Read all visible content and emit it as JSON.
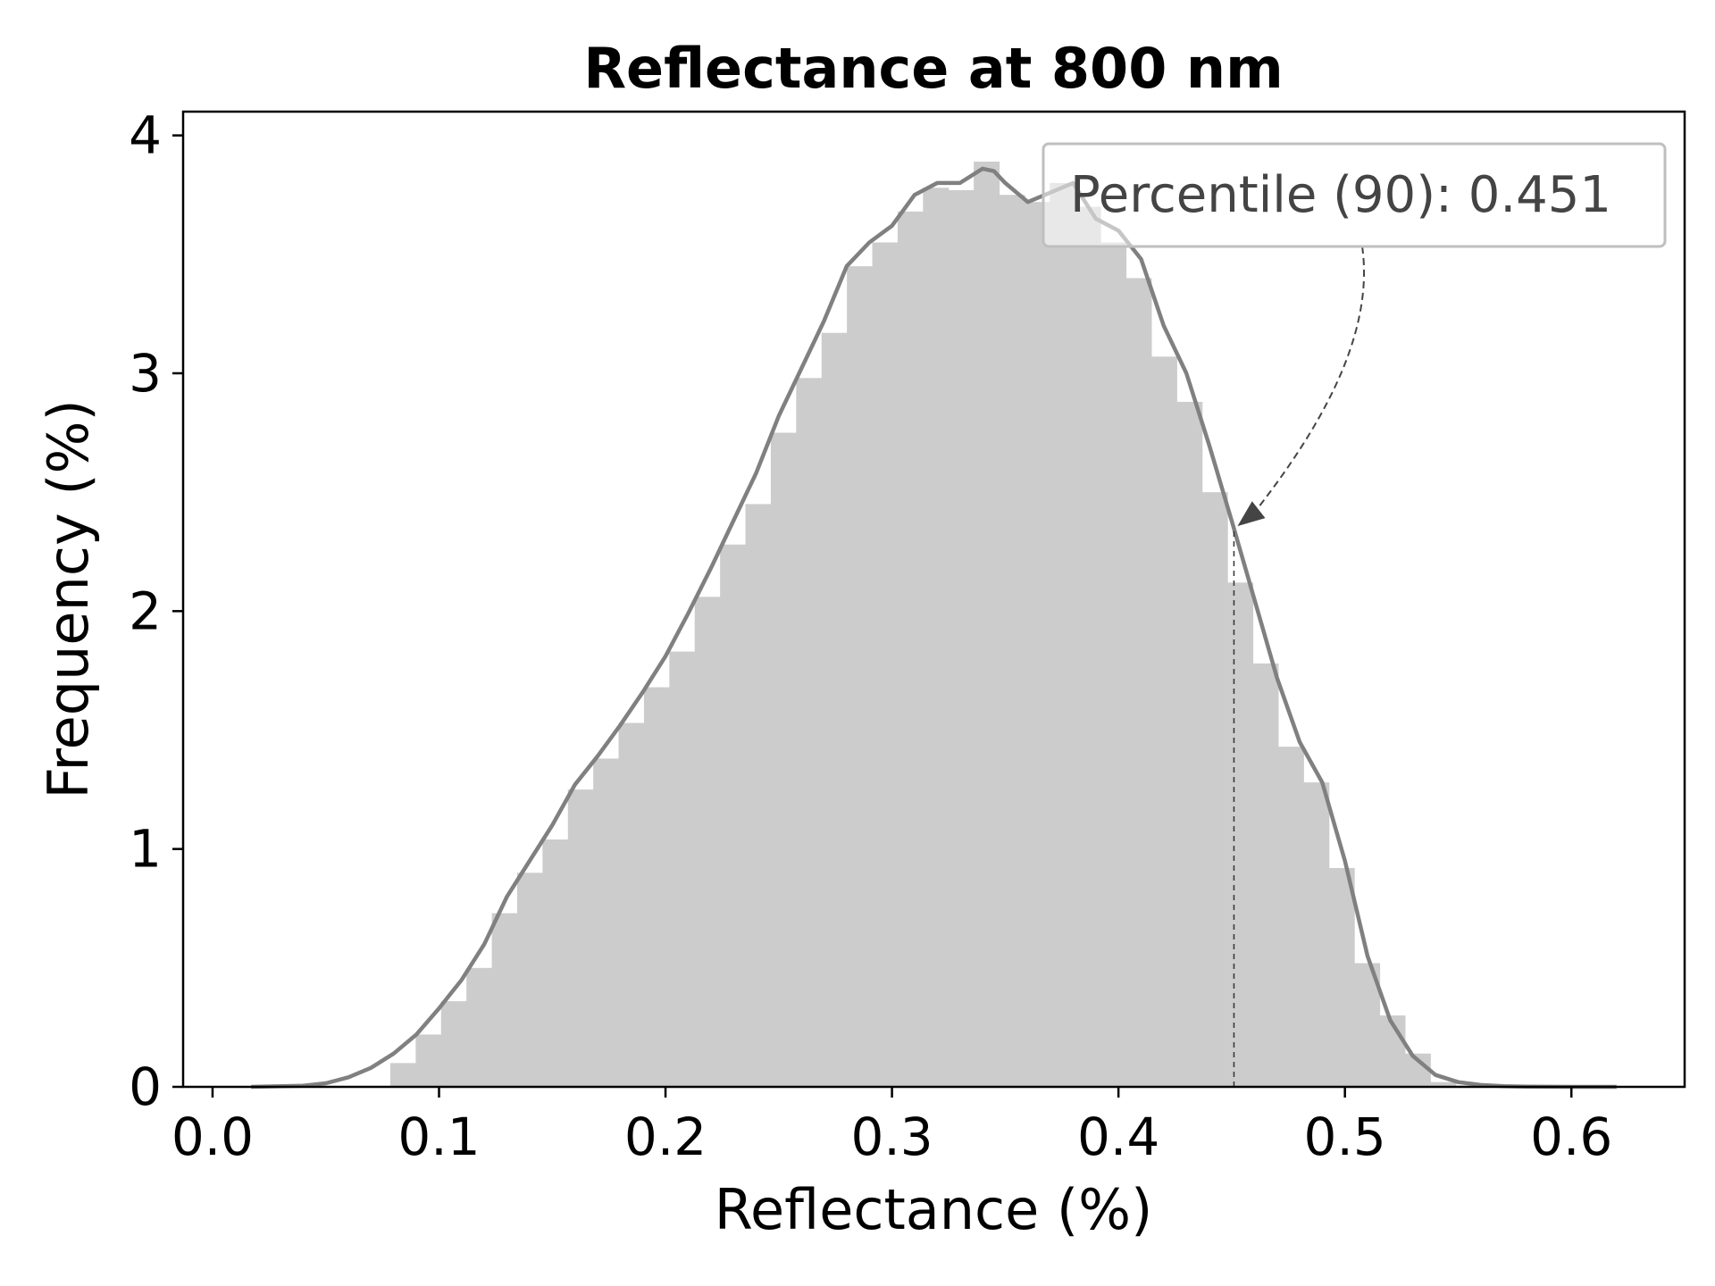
{
  "chart_data": {
    "type": "histogram",
    "title": "Reflectance at 800 nm",
    "xlabel": "Reflectance (%)",
    "ylabel": "Frequency (%)",
    "xlim": [
      -0.013,
      0.65
    ],
    "ylim": [
      0,
      4.1
    ],
    "x_ticks": [
      0.0,
      0.1,
      0.2,
      0.3,
      0.4,
      0.5,
      0.6
    ],
    "x_tick_labels": [
      "0.0",
      "0.1",
      "0.2",
      "0.3",
      "0.4",
      "0.5",
      "0.6"
    ],
    "y_ticks": [
      0,
      1,
      2,
      3,
      4
    ],
    "y_tick_labels": [
      "0",
      "1",
      "2",
      "3",
      "4"
    ],
    "grid": false,
    "histogram": {
      "bin_width": 0.0112,
      "bin_start": 0.0785,
      "values": [
        0.1,
        0.22,
        0.36,
        0.5,
        0.73,
        0.9,
        1.04,
        1.25,
        1.38,
        1.53,
        1.68,
        1.83,
        2.06,
        2.28,
        2.45,
        2.75,
        2.98,
        3.17,
        3.45,
        3.55,
        3.68,
        3.78,
        3.77,
        3.89,
        3.75,
        3.72,
        3.8,
        3.7,
        3.55,
        3.4,
        3.07,
        2.88,
        2.5,
        2.12,
        1.78,
        1.43,
        1.28,
        0.92,
        0.52,
        0.3,
        0.14,
        0.02,
        0.005
      ],
      "color": "#cccccc"
    },
    "kde": {
      "x": [
        0.017,
        0.04,
        0.05,
        0.06,
        0.07,
        0.08,
        0.09,
        0.1,
        0.11,
        0.12,
        0.13,
        0.14,
        0.15,
        0.16,
        0.17,
        0.18,
        0.19,
        0.2,
        0.21,
        0.22,
        0.23,
        0.24,
        0.25,
        0.26,
        0.27,
        0.28,
        0.29,
        0.3,
        0.31,
        0.32,
        0.33,
        0.34,
        0.345,
        0.35,
        0.36,
        0.37,
        0.38,
        0.39,
        0.4,
        0.41,
        0.42,
        0.43,
        0.44,
        0.45,
        0.46,
        0.47,
        0.48,
        0.49,
        0.5,
        0.51,
        0.52,
        0.53,
        0.54,
        0.55,
        0.56,
        0.57,
        0.58,
        0.6,
        0.62
      ],
      "y": [
        0.0,
        0.005,
        0.015,
        0.04,
        0.08,
        0.14,
        0.22,
        0.33,
        0.45,
        0.6,
        0.8,
        0.95,
        1.1,
        1.27,
        1.39,
        1.52,
        1.66,
        1.81,
        1.99,
        2.18,
        2.38,
        2.58,
        2.82,
        3.02,
        3.22,
        3.45,
        3.55,
        3.62,
        3.75,
        3.8,
        3.8,
        3.86,
        3.85,
        3.8,
        3.72,
        3.76,
        3.8,
        3.65,
        3.6,
        3.48,
        3.2,
        3.0,
        2.7,
        2.38,
        2.05,
        1.72,
        1.45,
        1.28,
        0.95,
        0.55,
        0.28,
        0.13,
        0.05,
        0.02,
        0.008,
        0.003,
        0.001,
        0.0,
        0.0
      ],
      "color": "#808080"
    },
    "percentile_line": {
      "x": 0.451,
      "y_top": 2.35
    },
    "annotation": {
      "text": "Percentile (90): 0.451",
      "position": "upper-right",
      "arrow_target": [
        0.451,
        2.35
      ]
    }
  }
}
